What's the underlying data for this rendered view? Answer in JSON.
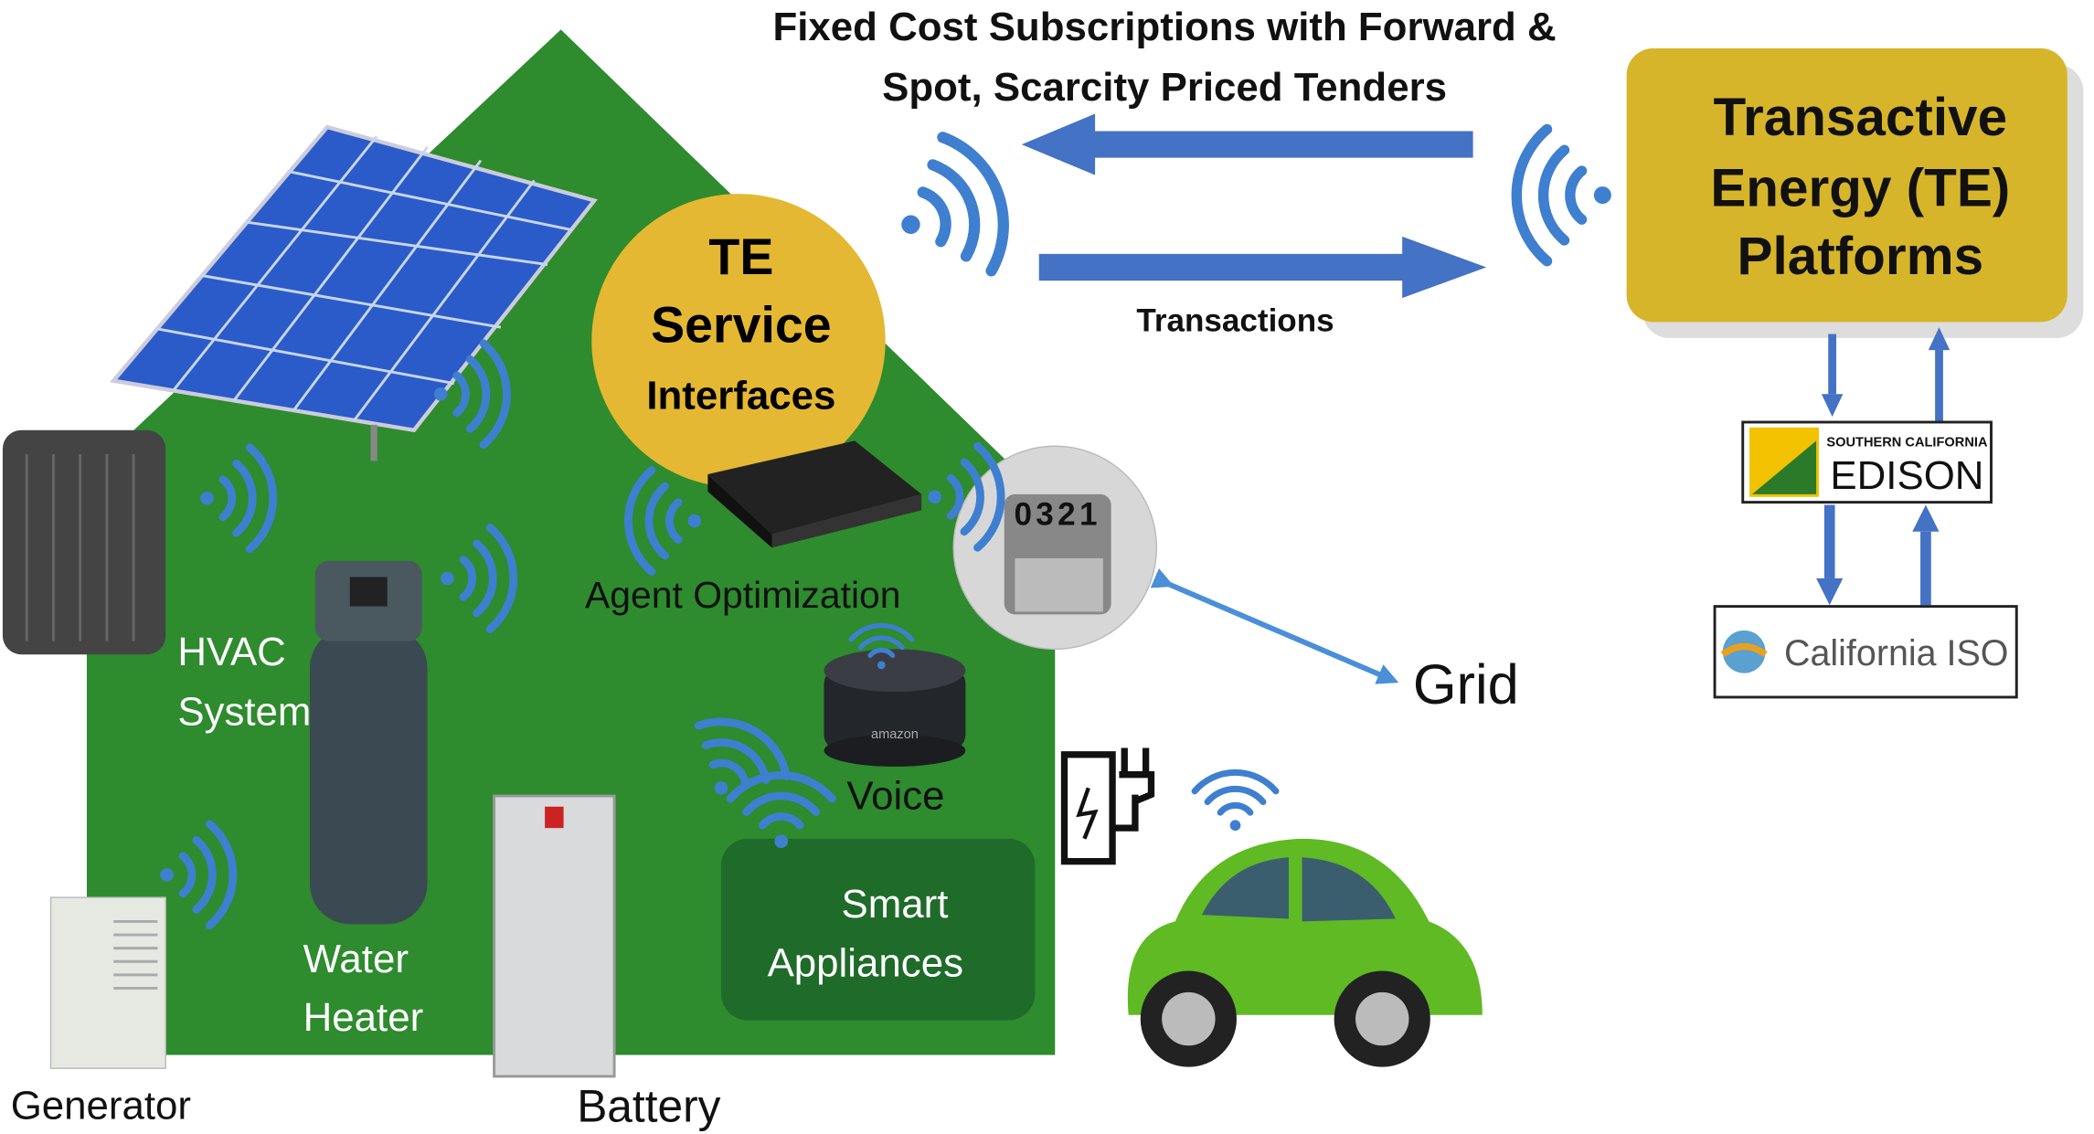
{
  "header": {
    "lines": [
      "Fixed Cost Subscriptions with Forward &",
      "Spot, Scarcity Priced Tenders"
    ]
  },
  "transactions_label": "Transactions",
  "te_platforms": {
    "lines": [
      "Transactive",
      "Energy (TE)",
      "Platforms"
    ]
  },
  "te_service": {
    "lines": [
      "TE",
      "Service",
      "Interfaces"
    ]
  },
  "agent_label": "Agent Optimization",
  "hvac": {
    "lines": [
      "HVAC",
      "System"
    ]
  },
  "water_heater": {
    "lines": [
      "Water",
      "Heater"
    ]
  },
  "generator_label": "Generator",
  "battery_label": "Battery",
  "voice_label": "Voice",
  "echo_brand": "amazon",
  "smart_appliances": {
    "lines": [
      "Smart",
      "Appliances"
    ]
  },
  "grid_label": "Grid",
  "meter_digits": "0321",
  "edison": {
    "small": "SOUTHERN CALIFORNIA",
    "name": "EDISON"
  },
  "iso_label": "California ISO"
}
